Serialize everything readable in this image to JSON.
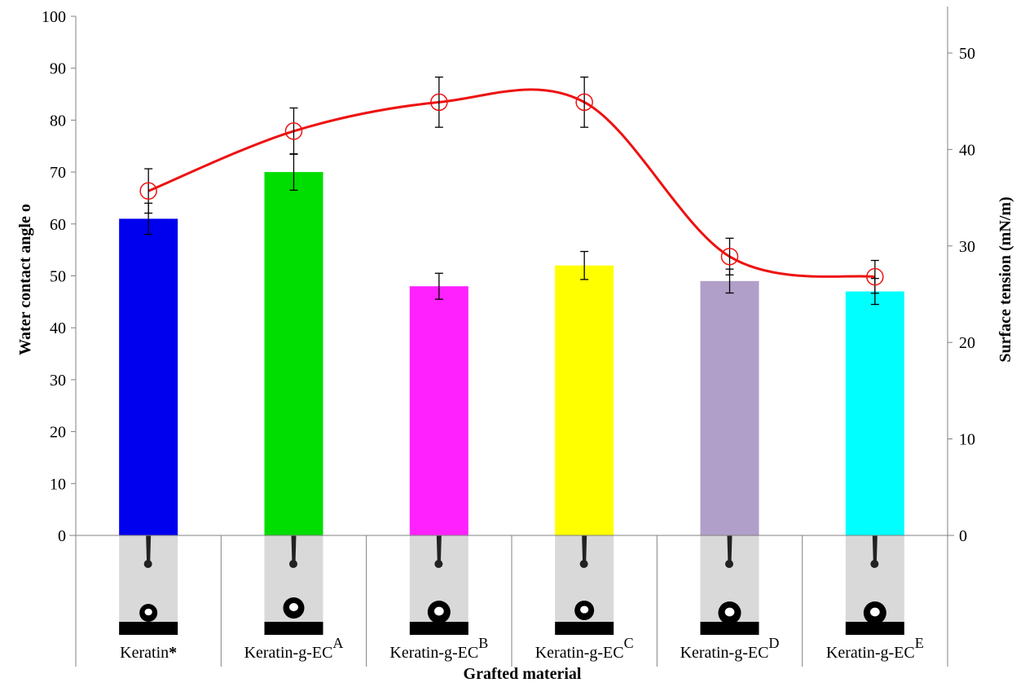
{
  "chart_data": {
    "type": "bar",
    "categories": [
      {
        "name": "Keratin",
        "marker": "*"
      },
      {
        "name": "Keratin-g-EC",
        "marker": "A"
      },
      {
        "name": "Keratin-g-EC",
        "marker": "B"
      },
      {
        "name": "Keratin-g-EC",
        "marker": "C"
      },
      {
        "name": "Keratin-g-EC",
        "marker": "D"
      },
      {
        "name": "Keratin-g-EC",
        "marker": "E"
      }
    ],
    "series": [
      {
        "name": "",
        "chart": "bar",
        "axis": "left",
        "values": [
          61,
          70,
          48,
          52,
          49,
          47
        ],
        "error": [
          3,
          3.5,
          2.5,
          2.7,
          2.3,
          2.5
        ],
        "colors": [
          "#0000ee",
          "#00dd00",
          "#ff22ff",
          "#ffff00",
          "#b09fc8",
          "#00ffff"
        ]
      },
      {
        "name": "",
        "chart": "line",
        "axis": "right",
        "values": [
          35.7,
          41.9,
          44.9,
          44.9,
          28.9,
          26.8
        ],
        "error": [
          2.3,
          2.4,
          2.6,
          2.6,
          1.9,
          1.7
        ],
        "color": "#ee1111",
        "smooth": true,
        "marker": "open-circle-cross"
      }
    ],
    "xlabel": "Grafted material",
    "ylabel": "Water contact angle o",
    "ylabel_right": "Surface tension (mN/m)",
    "ylim": [
      0,
      100
    ],
    "ylim_right": [
      0,
      53.8
    ],
    "yticks": [
      0,
      10,
      20,
      30,
      40,
      50,
      60,
      70,
      80,
      90,
      100
    ],
    "yticks_right": [
      0,
      10,
      20,
      30,
      40,
      50
    ],
    "grid": false,
    "legend": "none",
    "droplet_images": true
  }
}
